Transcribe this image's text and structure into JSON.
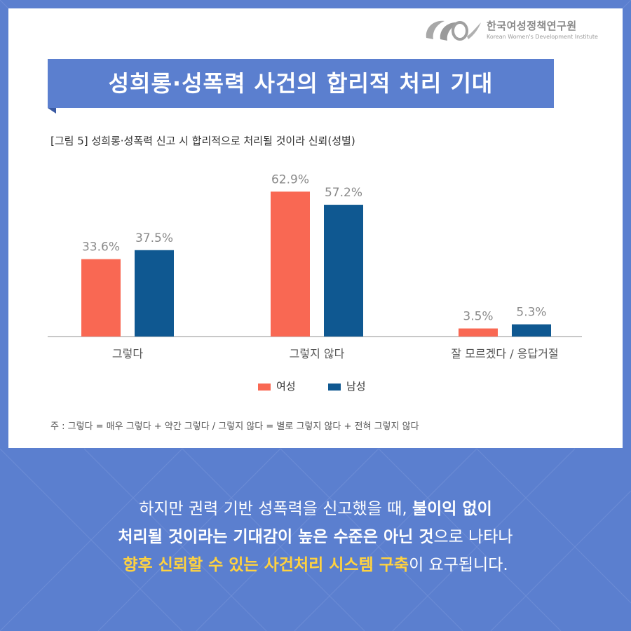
{
  "brand": {
    "org_kr": "한국여성정책연구원",
    "org_en": "Korean Women's Development Institute"
  },
  "title": "성희롱·성폭력 사건의 합리적 처리 기대",
  "figure_caption": "[그림 5] 성희롱·성폭력 신고 시 합리적으로 처리될 것이라 신뢰(성별)",
  "note": "주 : 그렇다 = 매우 그렇다 + 약간 그렇다 / 그렇지 않다 = 별로 그렇지 않다 + 전혀 그렇지 않다",
  "colors": {
    "background": "#5b7fcf",
    "female": "#f96853",
    "male": "#0f5891",
    "highlight": "#ffd23f"
  },
  "chart_data": {
    "type": "bar",
    "categories": [
      "그렇다",
      "그렇지 않다",
      "잘 모르겠다 / 응답거절"
    ],
    "series": [
      {
        "name": "여성",
        "values": [
          33.6,
          62.9,
          3.5
        ],
        "labels": [
          "33.6%",
          "62.9%",
          "3.5%"
        ]
      },
      {
        "name": "남성",
        "values": [
          37.5,
          57.2,
          5.3
        ],
        "labels": [
          "37.5%",
          "57.2%",
          "5.3%"
        ]
      }
    ],
    "unit": "%",
    "ylim": [
      0,
      70
    ],
    "grid": false,
    "legend_position": "bottom-center"
  },
  "bottom": {
    "line1_regular": "하지만 권력 기반 성폭력을 신고했을 때, ",
    "line1_bold": "불이익 없이",
    "line2_bold1": "처리될 것이라는 기대감이 높은 수준은 아닌 것",
    "line2_regular": "으로 나타나",
    "line3_highlight": "향후 신뢰할 수 있는 사건처리 시스템 구축",
    "line3_regular": "이 요구됩니다."
  }
}
